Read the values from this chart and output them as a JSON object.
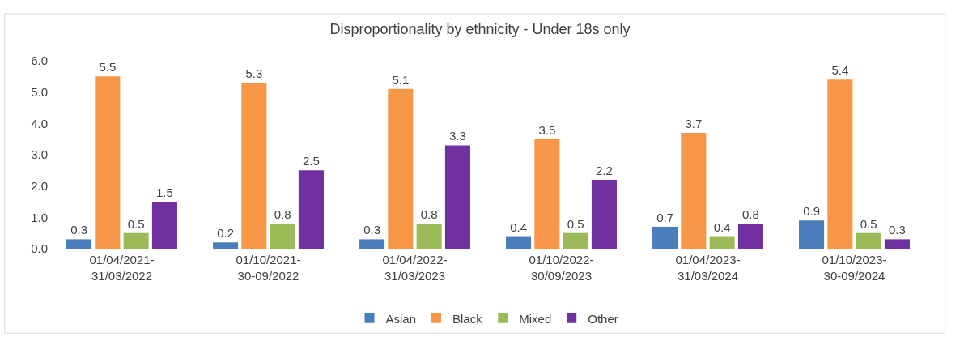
{
  "chart_data": {
    "type": "bar",
    "title": "Disproportionality by ethnicity - Under 18s only",
    "categories": [
      "01/04/2021-\n31/03/2022",
      "01/10/2021-\n30-09/2022",
      "01/04/2022-\n31/03/2023",
      "01/10/2022-\n30/09/2023",
      "01/04/2023-\n31/03/2024",
      "01/10/2023-\n30-09/2024"
    ],
    "series": [
      {
        "name": "Asian",
        "color": "#4a7ebb",
        "values": [
          0.3,
          0.2,
          0.3,
          0.4,
          0.7,
          0.9
        ]
      },
      {
        "name": "Black",
        "color": "#f79646",
        "values": [
          5.5,
          5.3,
          5.1,
          3.5,
          3.7,
          5.4
        ]
      },
      {
        "name": "Mixed",
        "color": "#9bbb59",
        "values": [
          0.5,
          0.8,
          0.8,
          0.5,
          0.4,
          0.5
        ]
      },
      {
        "name": "Other",
        "color": "#7030a0",
        "values": [
          1.5,
          2.5,
          3.3,
          2.2,
          0.8,
          0.3
        ]
      }
    ],
    "ylim": [
      0,
      6
    ],
    "yticks": [
      {
        "value": 0,
        "label": "0.0"
      },
      {
        "value": 1,
        "label": "1.0"
      },
      {
        "value": 2,
        "label": "2.0"
      },
      {
        "value": 3,
        "label": "3.0"
      },
      {
        "value": 4,
        "label": "4.0"
      },
      {
        "value": 5,
        "label": "5.0"
      },
      {
        "value": 6,
        "label": "6.0"
      }
    ],
    "grid": false,
    "legend": "bottom",
    "data_labels": true
  }
}
